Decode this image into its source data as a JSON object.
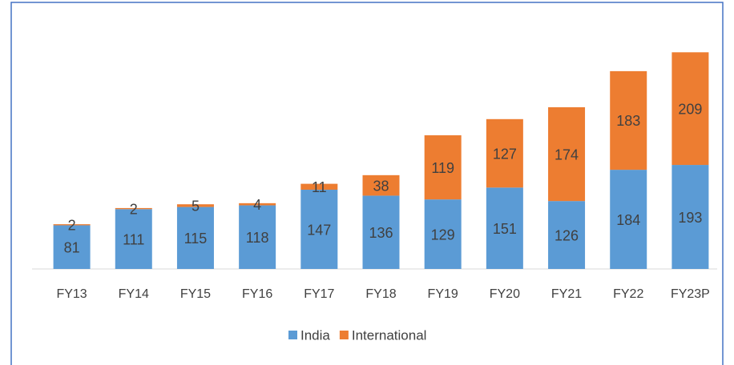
{
  "chart_data": {
    "type": "stacked_bar",
    "categories": [
      "FY13",
      "FY14",
      "FY15",
      "FY16",
      "FY17",
      "FY18",
      "FY19",
      "FY20",
      "FY21",
      "FY22",
      "FY23P"
    ],
    "series": [
      {
        "name": "India",
        "color": "#5b9bd5",
        "values": [
          81,
          111,
          115,
          118,
          147,
          136,
          129,
          151,
          126,
          184,
          193
        ]
      },
      {
        "name": "International",
        "color": "#ed7d31",
        "values": [
          2,
          2,
          5,
          4,
          11,
          38,
          119,
          127,
          174,
          183,
          209
        ]
      }
    ],
    "ylim": [
      0,
      450
    ],
    "legend": "bottom"
  }
}
